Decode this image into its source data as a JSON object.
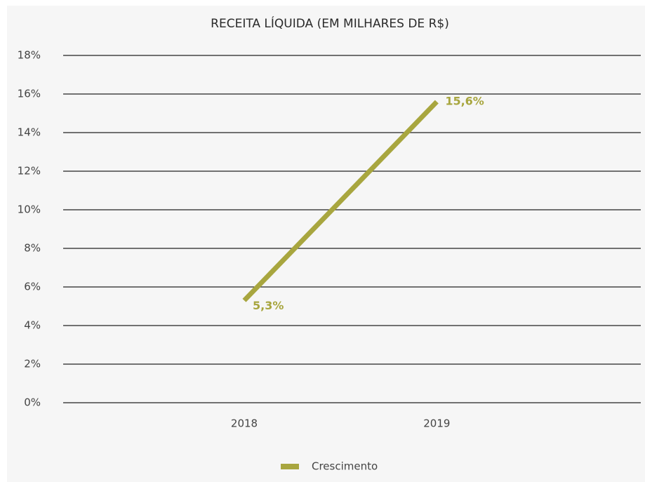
{
  "chart_data": {
    "type": "line",
    "title": "RECEITA LÍQUIDA (EM MILHARES DE R$)",
    "categories": [
      "2018",
      "2019"
    ],
    "series": [
      {
        "name": "Crescimento",
        "color": "#a8a63f",
        "values": [
          5.3,
          15.6
        ],
        "value_labels": [
          "5,3%",
          "15,6%"
        ]
      }
    ],
    "ylim": [
      0,
      18
    ],
    "yticks": [
      {
        "value": 0,
        "label": "0%"
      },
      {
        "value": 2,
        "label": "2%"
      },
      {
        "value": 4,
        "label": "4%"
      },
      {
        "value": 6,
        "label": "6%"
      },
      {
        "value": 8,
        "label": "8%"
      },
      {
        "value": 10,
        "label": "10%"
      },
      {
        "value": 12,
        "label": "12%"
      },
      {
        "value": 14,
        "label": "14%"
      },
      {
        "value": 16,
        "label": "16%"
      },
      {
        "value": 18,
        "label": "18%"
      }
    ],
    "grid": true,
    "legend": "bottom"
  }
}
